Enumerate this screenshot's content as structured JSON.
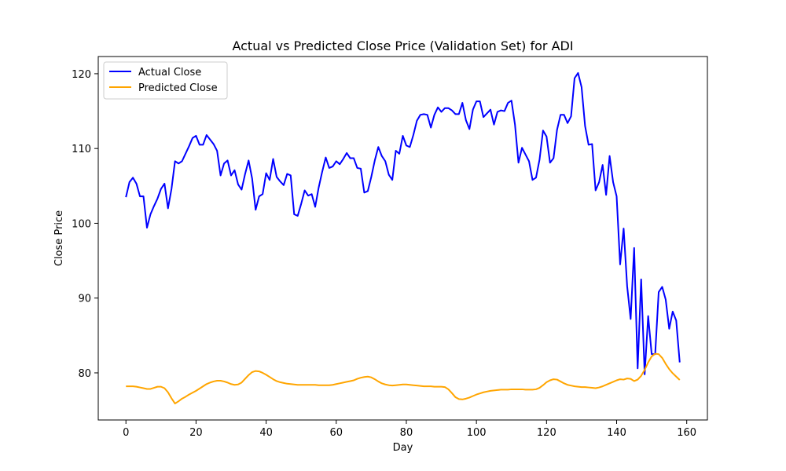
{
  "chart_data": {
    "type": "line",
    "title": "Actual vs Predicted Close Price (Validation Set) for ADI",
    "xlabel": "Day",
    "ylabel": "Close Price",
    "xlim": [
      -7.9,
      165.9
    ],
    "ylim": [
      73.7,
      122.3
    ],
    "xticks": [
      0,
      20,
      40,
      60,
      80,
      100,
      120,
      140,
      160
    ],
    "yticks": [
      80,
      90,
      100,
      110,
      120
    ],
    "grid": false,
    "legend_position": "upper-left",
    "x": [
      0,
      1,
      2,
      3,
      4,
      5,
      6,
      7,
      8,
      9,
      10,
      11,
      12,
      13,
      14,
      15,
      16,
      17,
      18,
      19,
      20,
      21,
      22,
      23,
      24,
      25,
      26,
      27,
      28,
      29,
      30,
      31,
      32,
      33,
      34,
      35,
      36,
      37,
      38,
      39,
      40,
      41,
      42,
      43,
      44,
      45,
      46,
      47,
      48,
      49,
      50,
      51,
      52,
      53,
      54,
      55,
      56,
      57,
      58,
      59,
      60,
      61,
      62,
      63,
      64,
      65,
      66,
      67,
      68,
      69,
      70,
      71,
      72,
      73,
      74,
      75,
      76,
      77,
      78,
      79,
      80,
      81,
      82,
      83,
      84,
      85,
      86,
      87,
      88,
      89,
      90,
      91,
      92,
      93,
      94,
      95,
      96,
      97,
      98,
      99,
      100,
      101,
      102,
      103,
      104,
      105,
      106,
      107,
      108,
      109,
      110,
      111,
      112,
      113,
      114,
      115,
      116,
      117,
      118,
      119,
      120,
      121,
      122,
      123,
      124,
      125,
      126,
      127,
      128,
      129,
      130,
      131,
      132,
      133,
      134,
      135,
      136,
      137,
      138,
      139,
      140,
      141,
      142,
      143,
      144,
      145,
      146,
      147,
      148,
      149,
      150,
      151,
      152,
      153,
      154,
      155,
      156,
      157,
      158
    ],
    "series": [
      {
        "name": "Actual Close",
        "color": "#0000ff",
        "values": [
          103.5,
          105.5,
          106.1,
          105.3,
          103.6,
          103.6,
          99.4,
          101.2,
          102.3,
          103.3,
          104.6,
          105.3,
          102.0,
          104.6,
          108.3,
          108.0,
          108.3,
          109.3,
          110.3,
          111.4,
          111.7,
          110.5,
          110.5,
          111.8,
          111.2,
          110.6,
          109.7,
          106.4,
          108.0,
          108.4,
          106.4,
          107.1,
          105.2,
          104.5,
          106.6,
          108.4,
          106.0,
          101.8,
          103.6,
          103.9,
          106.7,
          105.8,
          108.6,
          106.2,
          105.6,
          105.1,
          106.6,
          106.4,
          101.2,
          101.0,
          102.6,
          104.4,
          103.7,
          103.9,
          102.2,
          104.8,
          106.9,
          108.8,
          107.4,
          107.6,
          108.3,
          107.9,
          108.6,
          109.4,
          108.7,
          108.7,
          107.4,
          107.3,
          104.1,
          104.3,
          106.2,
          108.4,
          110.2,
          109.0,
          108.3,
          106.5,
          105.8,
          109.7,
          109.3,
          111.7,
          110.4,
          110.2,
          111.8,
          113.7,
          114.5,
          114.6,
          114.5,
          112.8,
          114.5,
          115.5,
          114.9,
          115.4,
          115.4,
          115.1,
          114.6,
          114.6,
          116.1,
          113.8,
          112.6,
          115.2,
          116.3,
          116.3,
          114.2,
          114.7,
          115.2,
          113.2,
          114.9,
          115.1,
          115.0,
          116.1,
          116.4,
          113.2,
          108.1,
          110.1,
          109.2,
          108.3,
          105.8,
          106.1,
          108.5,
          112.4,
          111.6,
          108.1,
          108.7,
          112.5,
          114.5,
          114.5,
          113.4,
          114.3,
          119.4,
          120.1,
          118.2,
          113.0,
          110.5,
          110.6,
          104.4,
          105.5,
          107.8,
          103.8,
          109.0,
          105.5,
          103.6,
          94.5,
          99.3,
          91.6,
          87.2,
          96.7,
          80.6,
          92.5,
          79.8,
          87.6,
          82.5,
          82.5,
          90.8,
          91.5,
          89.8,
          85.9,
          88.2,
          87.0,
          81.4
        ]
      },
      {
        "name": "Predicted Close",
        "color": "#ffa500",
        "values": [
          78.2,
          78.2,
          78.2,
          78.15,
          78.05,
          77.95,
          77.85,
          77.85,
          78.0,
          78.15,
          78.15,
          77.95,
          77.4,
          76.6,
          75.9,
          76.2,
          76.55,
          76.8,
          77.1,
          77.35,
          77.6,
          77.9,
          78.2,
          78.5,
          78.7,
          78.85,
          78.95,
          78.95,
          78.85,
          78.7,
          78.5,
          78.4,
          78.45,
          78.7,
          79.2,
          79.7,
          80.1,
          80.25,
          80.2,
          80.0,
          79.75,
          79.45,
          79.15,
          78.9,
          78.75,
          78.65,
          78.55,
          78.5,
          78.45,
          78.4,
          78.4,
          78.4,
          78.4,
          78.4,
          78.4,
          78.35,
          78.35,
          78.35,
          78.35,
          78.4,
          78.5,
          78.6,
          78.7,
          78.8,
          78.9,
          79.0,
          79.2,
          79.35,
          79.45,
          79.5,
          79.4,
          79.15,
          78.85,
          78.6,
          78.45,
          78.35,
          78.3,
          78.35,
          78.4,
          78.45,
          78.45,
          78.4,
          78.35,
          78.3,
          78.25,
          78.2,
          78.2,
          78.2,
          78.15,
          78.15,
          78.15,
          78.1,
          77.8,
          77.3,
          76.75,
          76.5,
          76.45,
          76.55,
          76.7,
          76.9,
          77.1,
          77.25,
          77.4,
          77.5,
          77.6,
          77.65,
          77.7,
          77.75,
          77.75,
          77.75,
          77.8,
          77.8,
          77.8,
          77.8,
          77.75,
          77.75,
          77.75,
          77.8,
          78.0,
          78.35,
          78.75,
          79.0,
          79.15,
          79.1,
          78.85,
          78.6,
          78.4,
          78.3,
          78.2,
          78.15,
          78.1,
          78.1,
          78.05,
          78.0,
          77.95,
          78.05,
          78.2,
          78.4,
          78.6,
          78.8,
          79.0,
          79.15,
          79.1,
          79.25,
          79.2,
          78.9,
          79.1,
          79.6,
          80.4,
          81.4,
          82.2,
          82.55,
          82.5,
          82.0,
          81.2,
          80.5,
          79.95,
          79.5,
          79.05
        ]
      }
    ]
  }
}
